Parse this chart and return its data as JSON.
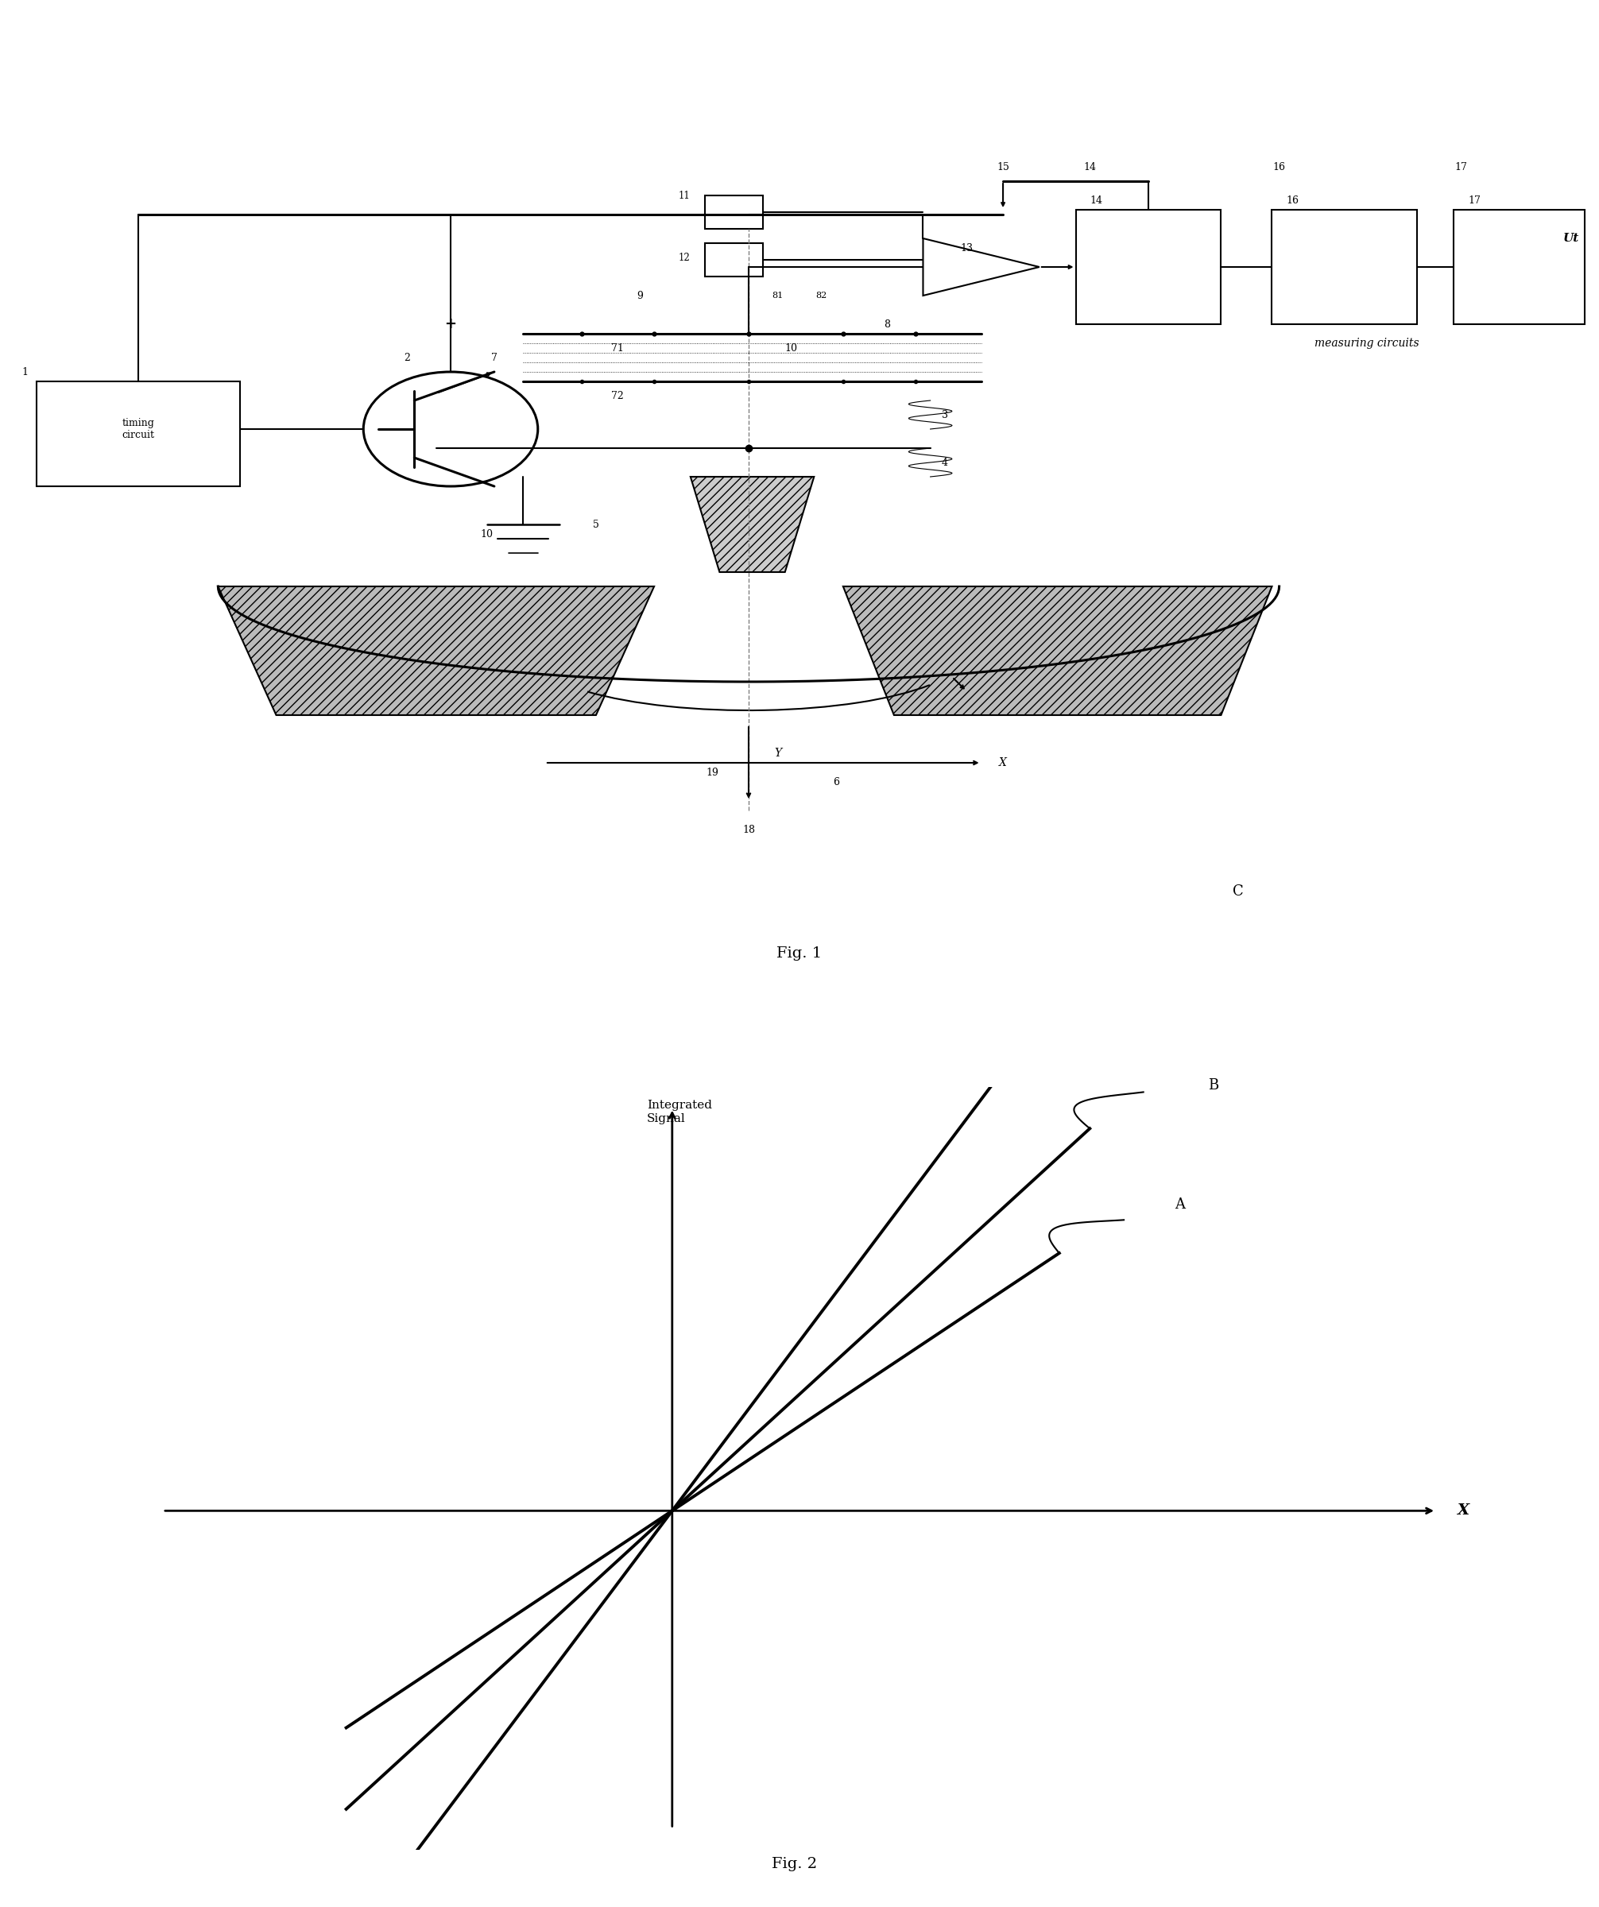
{
  "fig1_caption": "Fig. 1",
  "fig2_caption": "Fig. 2",
  "background_color": "#ffffff",
  "line_color": "#000000",
  "fig2_ylabel": "Integrated\nSignal",
  "fig2_xlabel": "X",
  "fig2_curves": [
    "A",
    "B",
    "C"
  ],
  "fig2_slopes": [
    1.6,
    2.2,
    3.2
  ],
  "page_width": 20.12,
  "page_height": 24.0
}
